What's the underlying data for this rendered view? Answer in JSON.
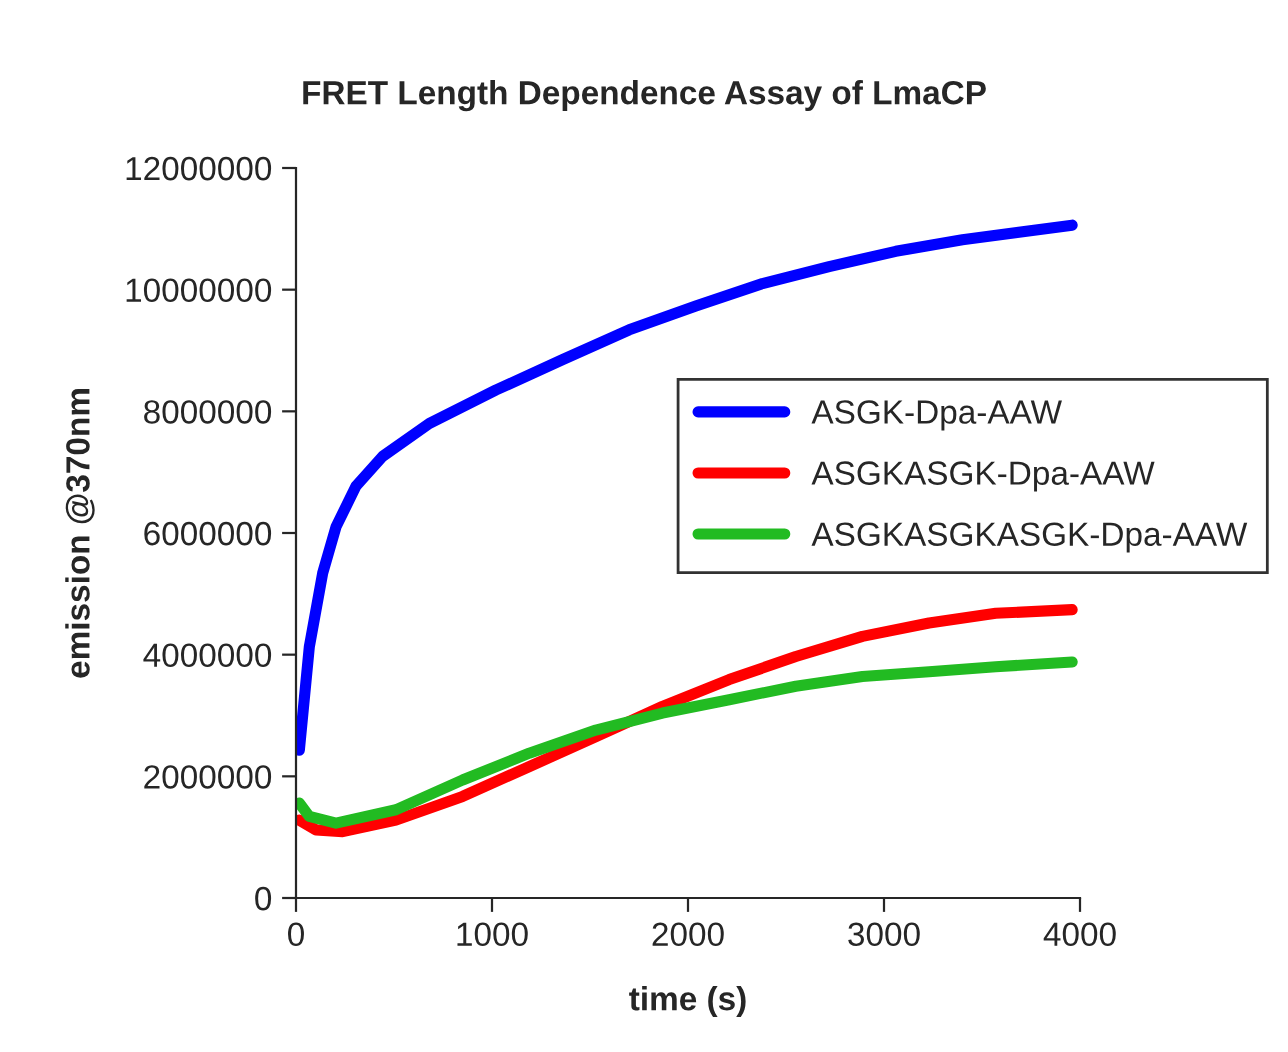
{
  "chart_data": {
    "type": "line",
    "title": "FRET Length Dependence Assay of LmaCP",
    "xlabel": "time (s)",
    "ylabel": "emission @370nm",
    "xlim": [
      0,
      4000
    ],
    "xticks": [
      0,
      1000,
      2000,
      3000,
      4000
    ],
    "ylim": [
      0,
      12000000
    ],
    "yticks": [
      0,
      2000000,
      4000000,
      6000000,
      8000000,
      10000000,
      12000000
    ],
    "grid": false,
    "legend": "right",
    "marker": "none",
    "line_style": "solid",
    "series": [
      {
        "name": "ASGK-Dpa-AAW",
        "color": "#0000ff",
        "x": [
          17,
          68,
          136,
          204,
          306,
          442,
          680,
          1020,
          1360,
          1700,
          2040,
          2380,
          2720,
          3060,
          3400,
          3960
        ],
        "values": [
          2430000,
          4130000,
          5340000,
          6100000,
          6770000,
          7260000,
          7800000,
          8350000,
          8850000,
          9340000,
          9730000,
          10100000,
          10380000,
          10630000,
          10820000,
          11060000
        ]
      },
      {
        "name": "ASGKASGK-Dpa-AAW",
        "color": "#ff0000",
        "x": [
          17,
          102,
          238,
          510,
          850,
          1190,
          1530,
          1870,
          2210,
          2550,
          2890,
          3230,
          3570,
          3960
        ],
        "values": [
          1280000,
          1120000,
          1090000,
          1280000,
          1670000,
          2160000,
          2650000,
          3150000,
          3590000,
          3970000,
          4300000,
          4520000,
          4680000,
          4740000
        ]
      },
      {
        "name": "ASGKASGKASGK-Dpa-AAW",
        "color": "#22bb22",
        "x": [
          17,
          68,
          204,
          510,
          850,
          1190,
          1530,
          1870,
          2210,
          2550,
          2890,
          3230,
          3570,
          3960
        ],
        "values": [
          1560000,
          1340000,
          1230000,
          1450000,
          1940000,
          2380000,
          2760000,
          3040000,
          3260000,
          3480000,
          3640000,
          3720000,
          3800000,
          3880000
        ]
      }
    ]
  }
}
